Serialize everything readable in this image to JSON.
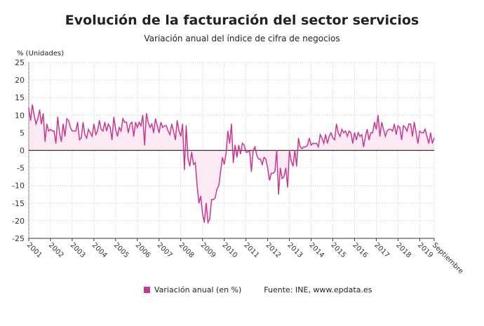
{
  "chart_data": {
    "type": "area",
    "title": "Evolución de la facturación del sector servicios",
    "subtitle": "Variación anual del índice de cifra de negocios",
    "ylabel": "% (Unidades)",
    "ylim": [
      -25,
      25
    ],
    "yticks": [
      25,
      20,
      15,
      10,
      5,
      0,
      -5,
      -10,
      -15,
      -20,
      -25
    ],
    "xticks": [
      "2001",
      "2002",
      "2003",
      "2004",
      "2005",
      "2006",
      "2007",
      "2008",
      "2009",
      "2010",
      "2011",
      "2012",
      "2013",
      "2014",
      "2015",
      "2016",
      "2017",
      "2018",
      "2019",
      "Septiembre"
    ],
    "x_start": "2001-01",
    "x_end": "2019-09",
    "frequency": "monthly",
    "grid": true,
    "legend_position": "bottom",
    "source": "Fuente: INE, www.epdata.es",
    "line_color": "#c9388f",
    "fill_color": "#fbe9f3",
    "series": [
      {
        "name": "Variación anual (en %)",
        "values": [
          12,
          8.5,
          13,
          10,
          7.5,
          9,
          11.5,
          7.5,
          10.5,
          2.5,
          7.5,
          5.5,
          6,
          5.5,
          5.5,
          2,
          9.5,
          5,
          2.5,
          7.5,
          4,
          9,
          8.5,
          6.5,
          5.5,
          5.5,
          5.5,
          8,
          3,
          3.5,
          8,
          4.5,
          3.5,
          6,
          5,
          4,
          7.5,
          4.5,
          5.5,
          8.5,
          6,
          5.5,
          8,
          5.5,
          7.5,
          6.5,
          3,
          9.5,
          6,
          4,
          6.5,
          5.5,
          9,
          8,
          8,
          5,
          7.5,
          8,
          4,
          8,
          6.5,
          8,
          7,
          10,
          1.5,
          10.5,
          8,
          6.5,
          7.5,
          5,
          9,
          7,
          5,
          8,
          6.5,
          7,
          7,
          5.5,
          4.5,
          7.5,
          5.5,
          3,
          8.5,
          5.5,
          4,
          7.5,
          -5.5,
          7,
          -2.5,
          -4.5,
          -0.5,
          -4,
          -3.5,
          -10,
          -15,
          -13,
          -18,
          -20.5,
          -15,
          -20.5,
          -19.5,
          -14,
          -14,
          -13.5,
          -11,
          -10,
          -6,
          -2,
          -4,
          -1,
          5.5,
          2,
          7.5,
          -3.5,
          1.5,
          -2,
          1.5,
          -1,
          2,
          1.5,
          -0.5,
          -0.5,
          0,
          -6,
          0,
          1,
          -1.5,
          -2.5,
          -2.5,
          -4,
          -2,
          -2.5,
          -5,
          -8.5,
          -6.5,
          -6.5,
          -6,
          0,
          -12.5,
          -5,
          -8,
          -7.5,
          -5,
          -10.5,
          0,
          -3,
          -4.5,
          0,
          -4.5,
          3.5,
          1,
          0.5,
          1,
          1,
          1.5,
          3.5,
          1.5,
          2,
          2,
          2,
          1,
          4.5,
          3.5,
          2,
          4.5,
          2,
          4,
          5,
          3.5,
          3,
          7.5,
          5,
          4,
          6,
          5,
          5.5,
          4,
          5.5,
          5,
          2,
          5,
          3,
          5,
          4,
          4.5,
          1,
          4,
          6,
          3,
          5,
          5,
          8,
          6,
          10,
          4,
          8,
          6,
          4,
          5.5,
          6,
          6,
          5.5,
          7.5,
          4.5,
          7,
          6.5,
          3,
          7,
          6.5,
          5.5,
          7.5,
          7.5,
          4,
          8,
          5,
          2,
          5.5,
          5,
          5,
          6,
          4,
          2,
          5,
          2,
          3.5
        ]
      }
    ]
  }
}
